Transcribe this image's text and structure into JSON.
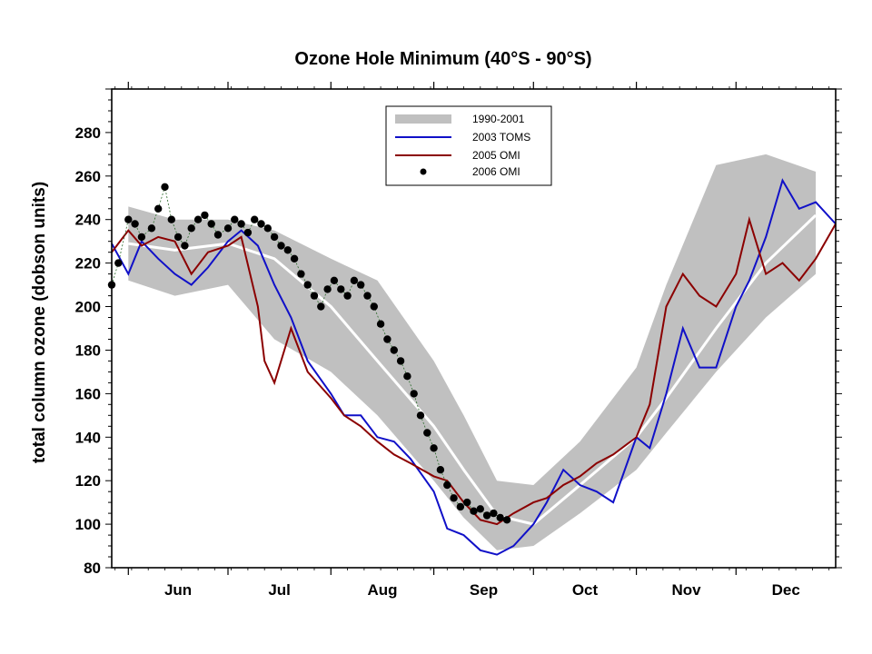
{
  "chart_data": {
    "type": "line",
    "title": "Ozone Hole Minimum (40°S - 90°S)",
    "ylabel": "total column ozone (dobson units)",
    "xlabel": "",
    "ylim": [
      80,
      300
    ],
    "yticks": [
      80,
      100,
      120,
      140,
      160,
      180,
      200,
      220,
      240,
      260,
      280
    ],
    "xlim": [
      "May 27",
      "Dec 31"
    ],
    "months": [
      "Jun",
      "Jul",
      "Aug",
      "Sep",
      "Oct",
      "Nov",
      "Dec"
    ],
    "grid": false,
    "legend_position": "top-center",
    "colors": {
      "band": "#c0c0c0",
      "mean_line": "#ffffff",
      "toms_2003": "#1010c8",
      "omi_2005": "#8b0000",
      "omi_2006": "#000000"
    },
    "band_1990_2001": {
      "name": "1990-2001",
      "dates": [
        "Jun 1",
        "Jun 15",
        "Jul 1",
        "Jul 15",
        "Aug 1",
        "Aug 15",
        "Sep 1",
        "Sep 10",
        "Sep 20",
        "Oct 1",
        "Oct 15",
        "Nov 1",
        "Nov 10",
        "Nov 25",
        "Dec 10",
        "Dec 25"
      ],
      "upper": [
        246,
        240,
        240,
        235,
        222,
        212,
        175,
        150,
        120,
        118,
        138,
        172,
        210,
        265,
        270,
        262
      ],
      "lower": [
        212,
        205,
        210,
        185,
        170,
        150,
        120,
        103,
        88,
        90,
        105,
        125,
        142,
        170,
        195,
        215
      ],
      "mean": [
        229,
        226,
        229,
        222,
        200,
        175,
        145,
        125,
        104,
        100,
        118,
        140,
        158,
        190,
        220,
        242
      ]
    },
    "series": [
      {
        "name": "2003 TOMS",
        "dates": [
          "May 27",
          "Jun 1",
          "Jun 5",
          "Jun 10",
          "Jun 15",
          "Jun 20",
          "Jun 25",
          "Jul 1",
          "Jul 5",
          "Jul 10",
          "Jul 15",
          "Jul 20",
          "Jul 25",
          "Aug 1",
          "Aug 5",
          "Aug 10",
          "Aug 15",
          "Aug 20",
          "Aug 25",
          "Sep 1",
          "Sep 5",
          "Sep 10",
          "Sep 15",
          "Sep 20",
          "Sep 25",
          "Oct 1",
          "Oct 5",
          "Oct 10",
          "Oct 15",
          "Oct 20",
          "Oct 25",
          "Nov 1",
          "Nov 5",
          "Nov 10",
          "Nov 15",
          "Nov 20",
          "Nov 25",
          "Dec 1",
          "Dec 5",
          "Dec 10",
          "Dec 15",
          "Dec 20",
          "Dec 25",
          "Dec 31"
        ],
        "values": [
          229,
          215,
          230,
          222,
          215,
          210,
          218,
          230,
          235,
          228,
          210,
          195,
          175,
          160,
          150,
          150,
          140,
          138,
          130,
          115,
          98,
          95,
          88,
          86,
          90,
          100,
          110,
          125,
          118,
          115,
          110,
          140,
          135,
          160,
          190,
          172,
          172,
          200,
          212,
          232,
          258,
          245,
          248,
          238
        ]
      },
      {
        "name": "2005 OMI",
        "dates": [
          "May 27",
          "Jun 1",
          "Jun 5",
          "Jun 10",
          "Jun 15",
          "Jun 20",
          "Jun 25",
          "Jul 1",
          "Jul 5",
          "Jul 10",
          "Jul 12",
          "Jul 15",
          "Jul 20",
          "Jul 25",
          "Aug 1",
          "Aug 5",
          "Aug 10",
          "Aug 15",
          "Aug 20",
          "Aug 25",
          "Sep 1",
          "Sep 5",
          "Sep 10",
          "Sep 15",
          "Sep 20",
          "Sep 25",
          "Oct 1",
          "Oct 5",
          "Oct 10",
          "Oct 15",
          "Oct 20",
          "Oct 25",
          "Nov 1",
          "Nov 5",
          "Nov 10",
          "Nov 15",
          "Nov 20",
          "Nov 25",
          "Dec 1",
          "Dec 5",
          "Dec 10",
          "Dec 15",
          "Dec 20",
          "Dec 25",
          "Dec 31"
        ],
        "values": [
          225,
          235,
          228,
          232,
          230,
          215,
          225,
          228,
          232,
          200,
          175,
          165,
          190,
          170,
          158,
          150,
          145,
          138,
          132,
          128,
          122,
          120,
          110,
          102,
          100,
          105,
          110,
          112,
          118,
          122,
          128,
          132,
          140,
          155,
          200,
          215,
          205,
          200,
          215,
          240,
          215,
          220,
          212,
          222,
          238
        ]
      },
      {
        "name": "2006 OMI",
        "dates": [
          "May 27",
          "May 29",
          "Jun 1",
          "Jun 3",
          "Jun 5",
          "Jun 8",
          "Jun 10",
          "Jun 12",
          "Jun 14",
          "Jun 16",
          "Jun 18",
          "Jun 20",
          "Jun 22",
          "Jun 24",
          "Jun 26",
          "Jun 28",
          "Jul 1",
          "Jul 3",
          "Jul 5",
          "Jul 7",
          "Jul 9",
          "Jul 11",
          "Jul 13",
          "Jul 15",
          "Jul 17",
          "Jul 19",
          "Jul 21",
          "Jul 23",
          "Jul 25",
          "Jul 27",
          "Jul 29",
          "Jul 31",
          "Aug 2",
          "Aug 4",
          "Aug 6",
          "Aug 8",
          "Aug 10",
          "Aug 12",
          "Aug 14",
          "Aug 16",
          "Aug 18",
          "Aug 20",
          "Aug 22",
          "Aug 24",
          "Aug 26",
          "Aug 28",
          "Aug 30",
          "Sep 1",
          "Sep 3",
          "Sep 5",
          "Sep 7",
          "Sep 9",
          "Sep 11",
          "Sep 13",
          "Sep 15",
          "Sep 17",
          "Sep 19",
          "Sep 21",
          "Sep 23"
        ],
        "values": [
          210,
          220,
          240,
          238,
          232,
          236,
          245,
          255,
          240,
          232,
          228,
          236,
          240,
          242,
          238,
          233,
          236,
          240,
          238,
          234,
          240,
          238,
          236,
          232,
          228,
          226,
          222,
          215,
          210,
          205,
          200,
          208,
          212,
          208,
          205,
          212,
          210,
          205,
          200,
          192,
          185,
          180,
          175,
          168,
          160,
          150,
          142,
          135,
          125,
          118,
          112,
          108,
          110,
          106,
          107,
          104,
          105,
          103,
          102
        ]
      }
    ]
  }
}
